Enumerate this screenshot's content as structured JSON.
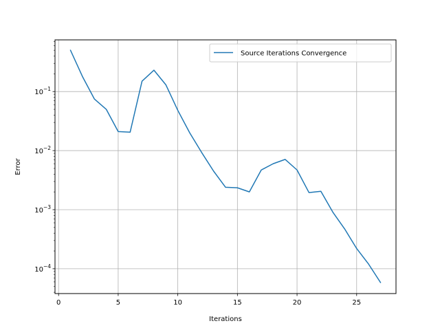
{
  "chart_data": {
    "type": "line",
    "title": "",
    "xlabel": "Iterations",
    "ylabel": "Error",
    "yscale": "log",
    "xlim": [
      -0.3,
      28.3
    ],
    "ylim": [
      3.8e-05,
      0.75
    ],
    "grid": true,
    "legend_position": "top-right",
    "x_ticks": [
      0,
      5,
      10,
      15,
      20,
      25
    ],
    "x_tick_labels": [
      "0",
      "5",
      "10",
      "15",
      "20",
      "25"
    ],
    "y_major_ticks": [
      0.0001,
      0.001,
      0.01,
      0.1
    ],
    "y_tick_labels": [
      {
        "base": "10",
        "exp": "−4"
      },
      {
        "base": "10",
        "exp": "−3"
      },
      {
        "base": "10",
        "exp": "−2"
      },
      {
        "base": "10",
        "exp": "−1"
      }
    ],
    "series": [
      {
        "name": "Source Iterations Convergence",
        "color": "#1f77b4",
        "x": [
          1,
          2,
          3,
          4,
          5,
          6,
          7,
          8,
          9,
          10,
          11,
          12,
          13,
          14,
          15,
          16,
          17,
          18,
          19,
          20,
          21,
          22,
          23,
          24,
          25,
          26,
          27
        ],
        "y": [
          0.5,
          0.18,
          0.075,
          0.05,
          0.021,
          0.0205,
          0.15,
          0.23,
          0.13,
          0.048,
          0.02,
          0.0093,
          0.0045,
          0.0024,
          0.00235,
          0.002,
          0.0047,
          0.006,
          0.0071,
          0.0047,
          0.00195,
          0.00205,
          0.00091,
          0.00047,
          0.00022,
          0.00012,
          5.85e-05
        ]
      }
    ]
  }
}
